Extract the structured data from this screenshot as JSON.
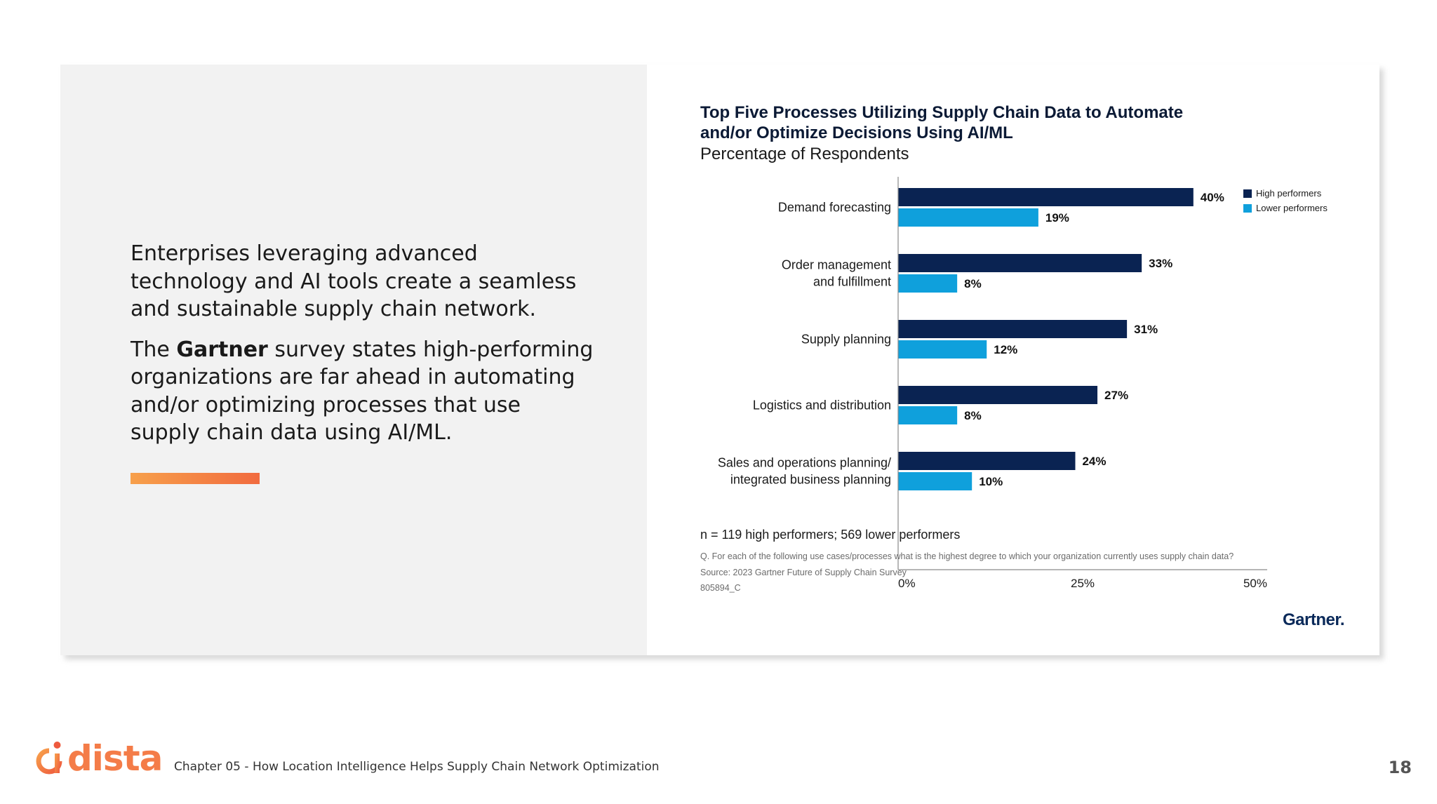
{
  "left": {
    "paragraph1": "Enterprises leveraging advanced technology and AI tools create a seamless and sustainable supply chain network.",
    "paragraph2_prefix": "The ",
    "paragraph2_bold": "Gartner",
    "paragraph2_suffix": " survey states high-performing organizations are far ahead in automating and/or optimizing processes that use supply chain data using AI/ML."
  },
  "chart_data": {
    "type": "bar",
    "orientation": "horizontal",
    "title": "Top Five Processes Utilizing Supply Chain Data to Automate and/or Optimize Decisions Using AI/ML",
    "subtitle": "Percentage of Respondents",
    "categories": [
      [
        "Demand forecasting"
      ],
      [
        "Order management",
        "and fulfillment"
      ],
      [
        "Supply planning"
      ],
      [
        "Logistics and distribution"
      ],
      [
        "Sales and operations planning/",
        "integrated business planning"
      ]
    ],
    "series": [
      {
        "name": "High performers",
        "color": "#0a2352",
        "values": [
          40,
          33,
          31,
          27,
          24
        ]
      },
      {
        "name": "Lower performers",
        "color": "#0fa0dc",
        "values": [
          19,
          8,
          12,
          8,
          10
        ]
      }
    ],
    "value_labels": [
      [
        "40%",
        "33%",
        "31%",
        "27%",
        "24%"
      ],
      [
        "19%",
        "8%",
        "12%",
        "8%",
        "10%"
      ]
    ],
    "xlim": [
      0,
      50
    ],
    "xticks": [
      "0%",
      "25%",
      "50%"
    ],
    "xtick_values": [
      0,
      25,
      50
    ],
    "legend_position": "top-right",
    "grid": false
  },
  "notes": {
    "sample": "n = 119 high performers; 569 lower performers",
    "question": "Q. For each of the following use cases/processes what is the highest degree to which your organization currently uses supply chain data?",
    "source": "Source: 2023 Gartner Future of Supply Chain Survey",
    "code": "805894_C"
  },
  "gartner_logo": "Gartner.",
  "footer": {
    "brand": "dista",
    "chapter": "Chapter 05 - How Location Intelligence Helps Supply Chain Network Optimization",
    "page": "18"
  }
}
